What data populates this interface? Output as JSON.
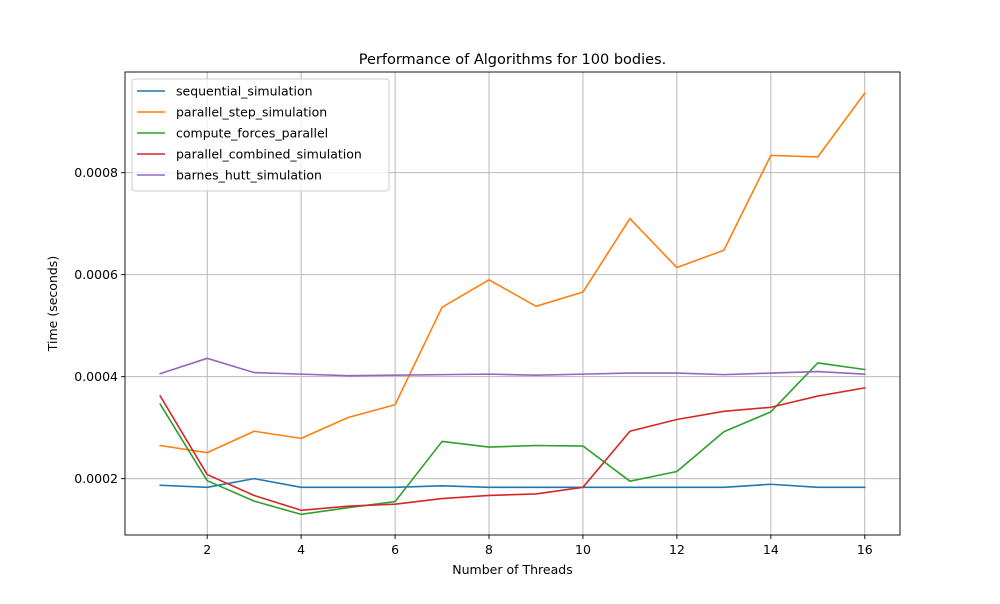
{
  "chart_data": {
    "type": "line",
    "title": "Performance of Algorithms for 100 bodies.",
    "xlabel": "Number of Threads",
    "ylabel": "Time (seconds)",
    "x": [
      1,
      2,
      3,
      4,
      5,
      6,
      7,
      8,
      9,
      10,
      11,
      12,
      13,
      14,
      15,
      16
    ],
    "xlim": [
      0.25,
      16.75
    ],
    "ylim": [
      8.95e-05,
      0.0009975
    ],
    "xticks": [
      2,
      4,
      6,
      8,
      10,
      12,
      14,
      16
    ],
    "xtick_labels": [
      "2",
      "4",
      "6",
      "8",
      "10",
      "12",
      "14",
      "16"
    ],
    "yticks": [
      0.0002,
      0.0004,
      0.0006,
      0.0008
    ],
    "ytick_labels": [
      "0.0002",
      "0.0004",
      "0.0006",
      "0.0008"
    ],
    "grid": true,
    "legend_position": "top-left",
    "series": [
      {
        "name": "sequential_simulation",
        "color": "#1f77b4",
        "values": [
          0.000187,
          0.000183,
          0.0002,
          0.000183,
          0.000183,
          0.000183,
          0.000186,
          0.000183,
          0.000183,
          0.000183,
          0.000183,
          0.000183,
          0.000183,
          0.000189,
          0.000183,
          0.000183
        ]
      },
      {
        "name": "parallel_step_simulation",
        "color": "#ff7f0e",
        "values": [
          0.000265,
          0.000251,
          0.000293,
          0.000279,
          0.00032,
          0.000345,
          0.000536,
          0.00059,
          0.000538,
          0.000566,
          0.00071,
          0.000614,
          0.000648,
          0.000834,
          0.000831,
          0.000956
        ]
      },
      {
        "name": "compute_forces_parallel",
        "color": "#2ca02c",
        "values": [
          0.000346,
          0.000196,
          0.000156,
          0.00013,
          0.000143,
          0.000155,
          0.000273,
          0.000262,
          0.000265,
          0.000264,
          0.000195,
          0.000214,
          0.000292,
          0.000331,
          0.000427,
          0.000414
        ]
      },
      {
        "name": "parallel_combined_simulation",
        "color": "#d62728",
        "values": [
          0.000362,
          0.000208,
          0.000167,
          0.000138,
          0.000146,
          0.00015,
          0.000161,
          0.000167,
          0.00017,
          0.000183,
          0.000293,
          0.000316,
          0.000332,
          0.00034,
          0.000362,
          0.000378
        ]
      },
      {
        "name": "barnes_hutt_simulation",
        "color": "#9467bd",
        "values": [
          0.000406,
          0.000436,
          0.000408,
          0.000405,
          0.000402,
          0.000403,
          0.000404,
          0.000405,
          0.000403,
          0.000405,
          0.000407,
          0.000407,
          0.000404,
          0.000407,
          0.00041,
          0.000405
        ]
      }
    ]
  }
}
